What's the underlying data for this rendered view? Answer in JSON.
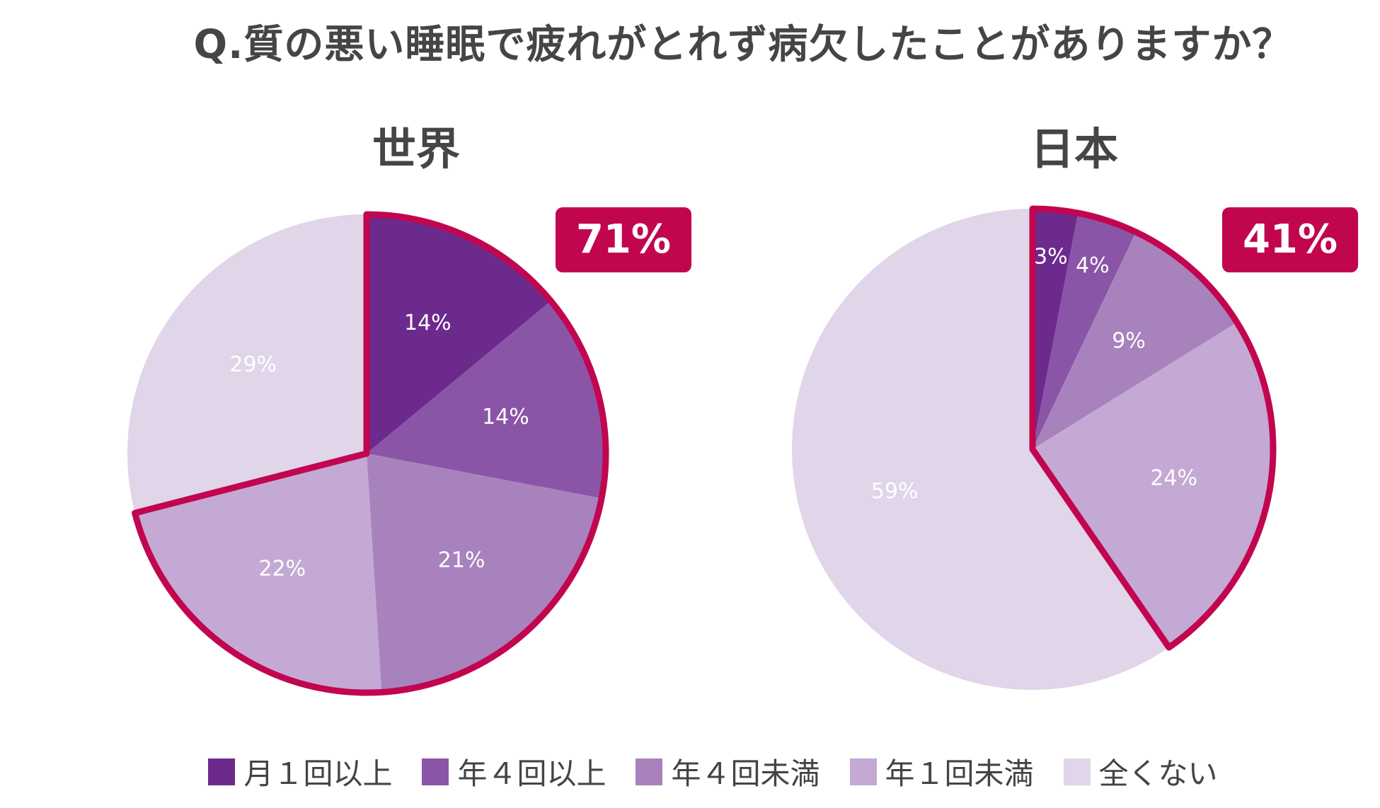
{
  "question": "Q.質の悪い睡眠で疲れがとれず病欠したことがありますか？",
  "highlight_color": "#c2054f",
  "chart_data": [
    {
      "type": "pie",
      "title": "世界",
      "highlight_total": "71%",
      "slices": [
        {
          "category": "月１回以上",
          "value": 14,
          "label": "14%",
          "color": "#6d2a8d",
          "highlighted": true
        },
        {
          "category": "年４回以上",
          "value": 14,
          "label": "14%",
          "color": "#8a55a6",
          "highlighted": true
        },
        {
          "category": "年４回未満",
          "value": 21,
          "label": "21%",
          "color": "#a882bd",
          "highlighted": true
        },
        {
          "category": "年１回未満",
          "value": 22,
          "label": "22%",
          "color": "#c4a9d4",
          "highlighted": true
        },
        {
          "category": "全くない",
          "value": 29,
          "label": "29%",
          "color": "#e0d5e9",
          "highlighted": false
        }
      ]
    },
    {
      "type": "pie",
      "title": "日本",
      "highlight_total": "41%",
      "slices": [
        {
          "category": "月１回以上",
          "value": 3,
          "label": "3%",
          "color": "#6d2a8d",
          "highlighted": true
        },
        {
          "category": "年４回以上",
          "value": 4,
          "label": "4%",
          "color": "#8a55a6",
          "highlighted": true
        },
        {
          "category": "年４回未満",
          "value": 9,
          "label": "9%",
          "color": "#a882bd",
          "highlighted": true
        },
        {
          "category": "年１回未満",
          "value": 24,
          "label": "24%",
          "color": "#c4a9d4",
          "highlighted": true
        },
        {
          "category": "全くない",
          "value": 59,
          "label": "59%",
          "color": "#e0d5e9",
          "highlighted": false
        }
      ]
    }
  ],
  "legend": [
    {
      "label": "月１回以上",
      "color": "#6d2a8d"
    },
    {
      "label": "年４回以上",
      "color": "#8a55a6"
    },
    {
      "label": "年４回未満",
      "color": "#a882bd"
    },
    {
      "label": "年１回未満",
      "color": "#c4a9d4"
    },
    {
      "label": "全くない",
      "color": "#e0d5e9"
    }
  ]
}
